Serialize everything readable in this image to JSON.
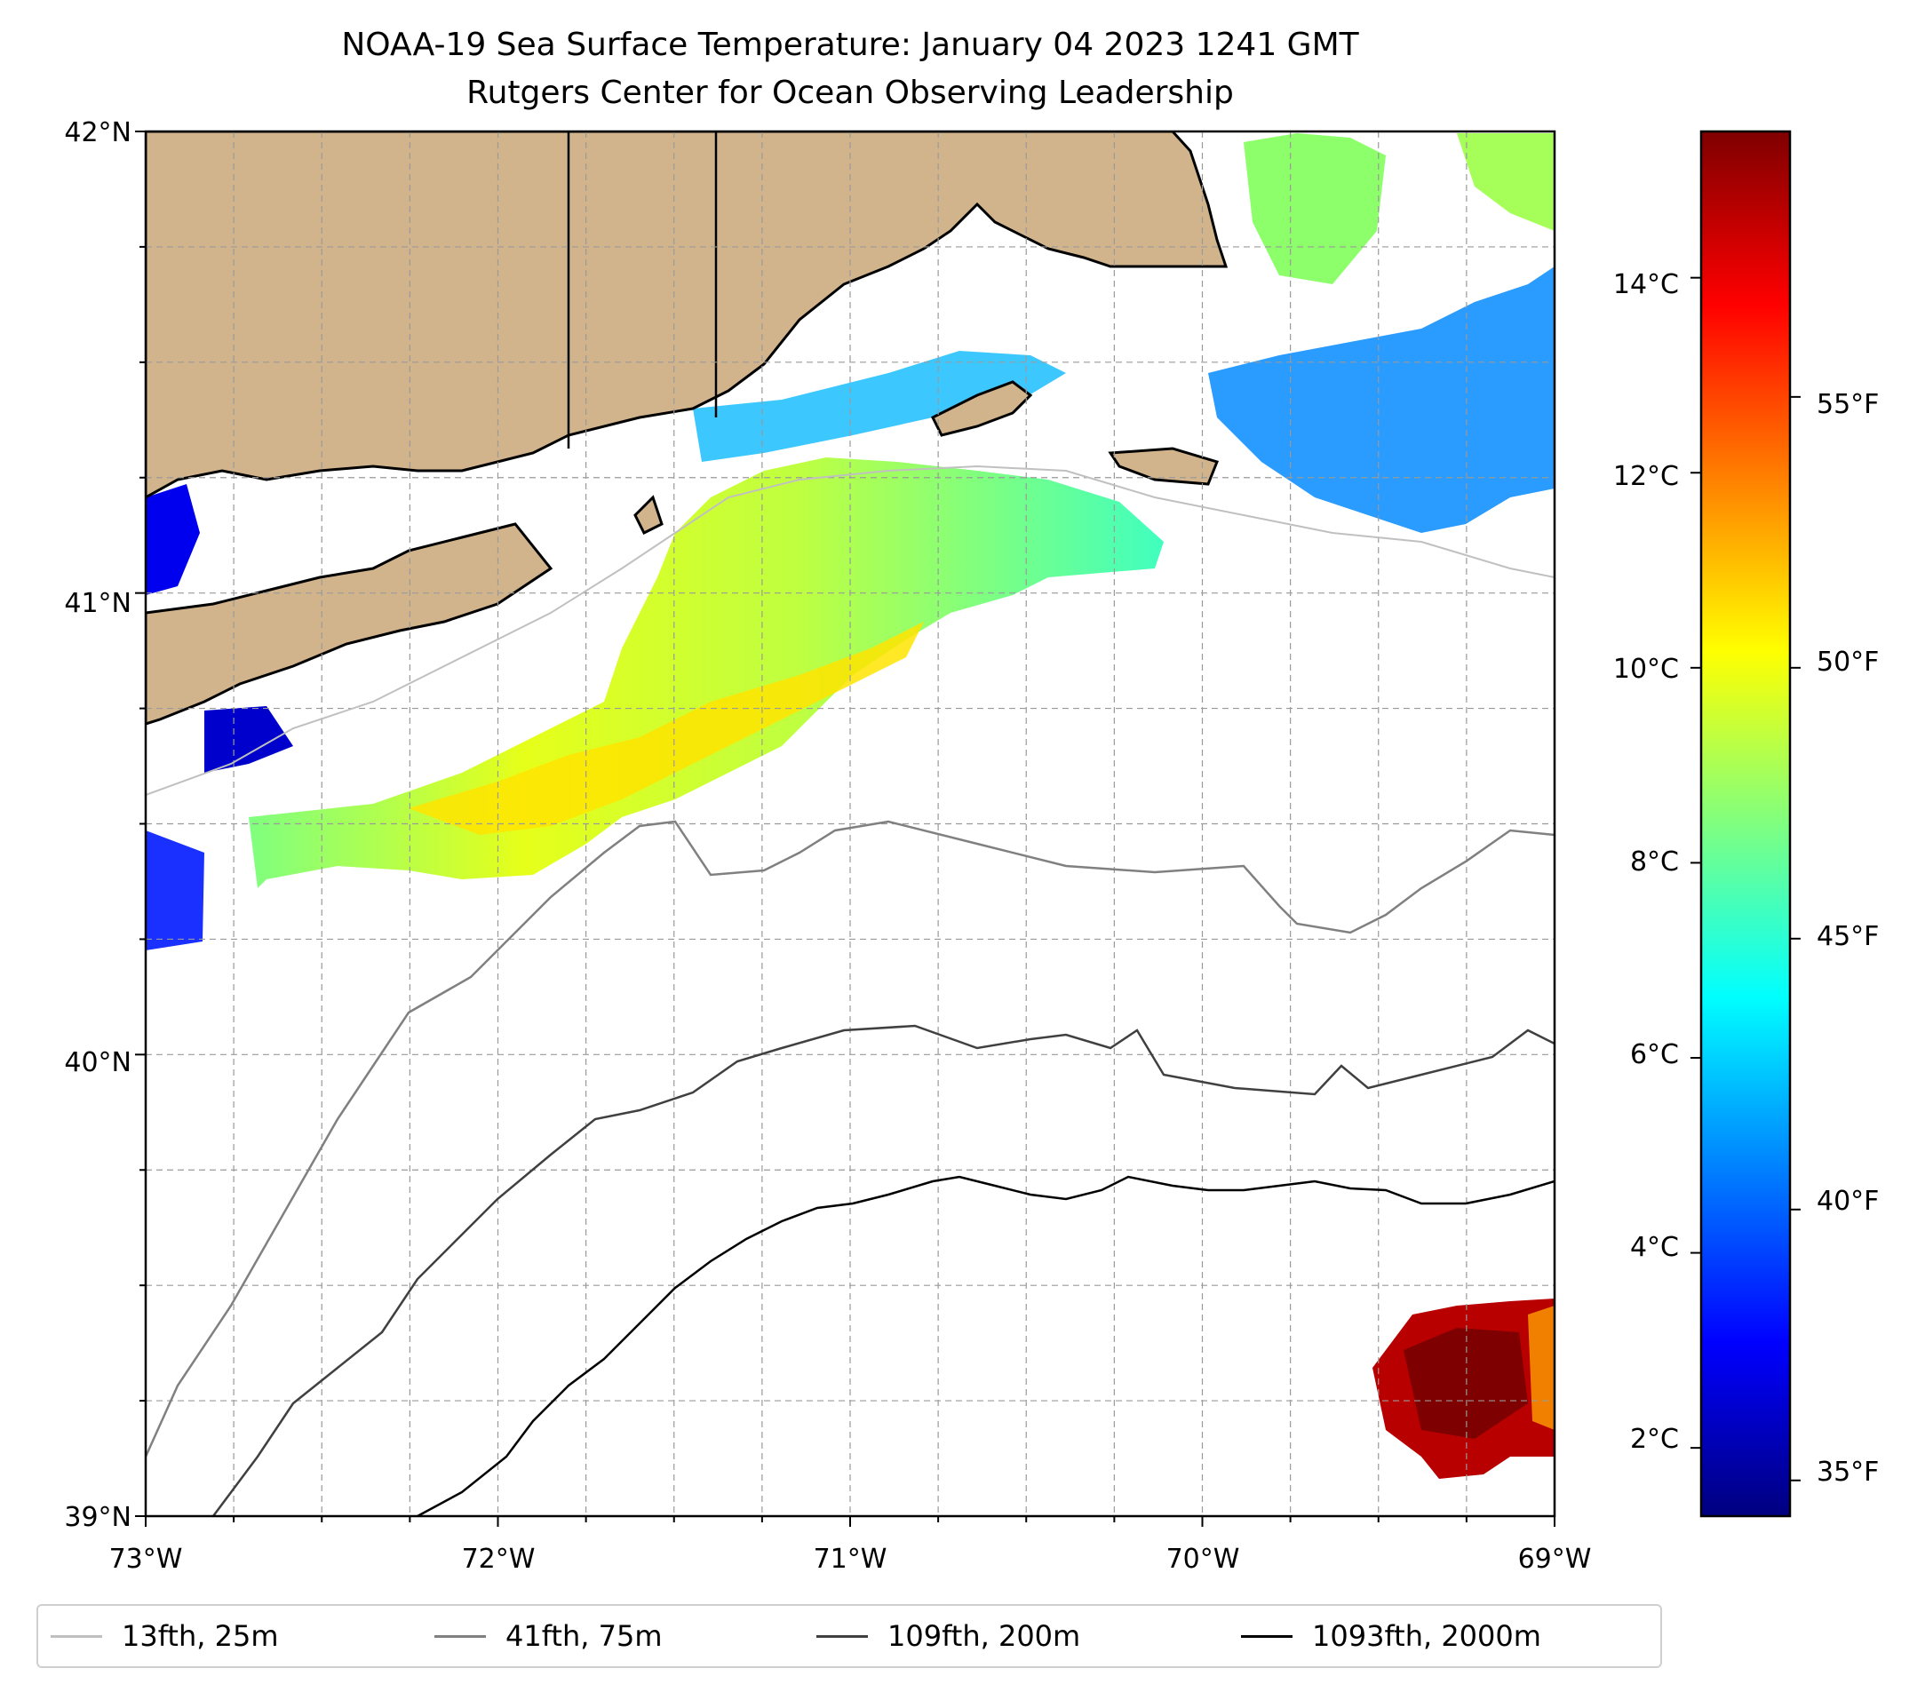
{
  "title": {
    "line1": "NOAA-19 Sea Surface Temperature: January 04 2023 1241 GMT",
    "line2": "Rutgers Center for Ocean Observing Leadership"
  },
  "map": {
    "lat_ticks": [
      "42°N",
      "41°N",
      "40°N",
      "39°N"
    ],
    "lon_ticks": [
      "73°W",
      "72°W",
      "71°W",
      "70°W",
      "69°W"
    ],
    "lat_range": [
      39,
      42
    ],
    "lon_range": [
      -73,
      -69
    ],
    "land_color": "#d2b48c",
    "grid": "dashed"
  },
  "colorbar": {
    "celsius_ticks": [
      "14°C",
      "12°C",
      "10°C",
      "8°C",
      "6°C",
      "4°C",
      "2°C"
    ],
    "fahrenheit_ticks": [
      "55°F",
      "50°F",
      "45°F",
      "40°F",
      "35°F"
    ],
    "colormap": "jet",
    "range_c": [
      1.3,
      15.5
    ]
  },
  "legend": {
    "items": [
      {
        "label": "13fth, 25m",
        "color": "#c0c0c0"
      },
      {
        "label": "41fth, 75m",
        "color": "#808080"
      },
      {
        "label": "109fth, 200m",
        "color": "#404040"
      },
      {
        "label": "1093fth, 2000m",
        "color": "#000000"
      }
    ]
  }
}
